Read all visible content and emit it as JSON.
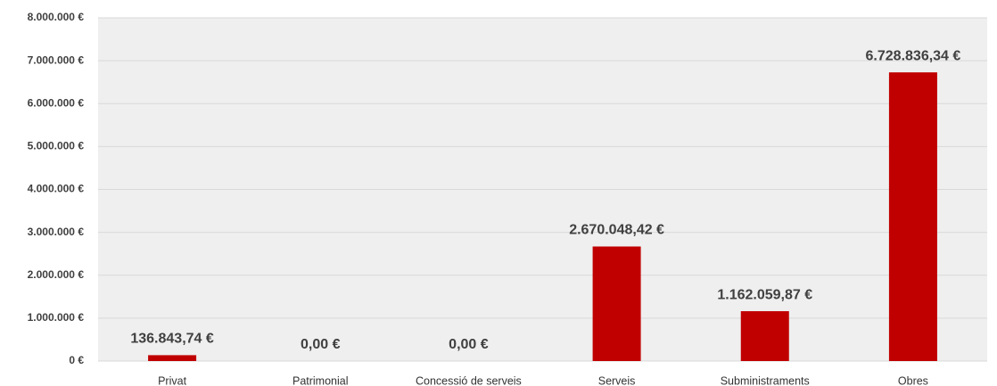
{
  "chart_data": {
    "type": "bar",
    "categories": [
      "Privat",
      "Patrimonial",
      "Concessió de serveis",
      "Serveis",
      "Subministraments",
      "Obres"
    ],
    "values": [
      136843.74,
      0,
      0,
      2670048.42,
      1162059.87,
      6728836.34
    ],
    "value_labels": [
      "136.843,74 €",
      "0,00 €",
      "0,00 €",
      "2.670.048,42 €",
      "1.162.059,87 €",
      "6.728.836,34 €"
    ],
    "color": "#c00000",
    "ylim": [
      0,
      8000000
    ],
    "yticks": [
      {
        "value": 0,
        "label": "0 €"
      },
      {
        "value": 1000000,
        "label": "1.000.000 €"
      },
      {
        "value": 2000000,
        "label": "2.000.000 €"
      },
      {
        "value": 3000000,
        "label": "3.000.000 €"
      },
      {
        "value": 4000000,
        "label": "4.000.000 €"
      },
      {
        "value": 5000000,
        "label": "5.000.000 €"
      },
      {
        "value": 6000000,
        "label": "6.000.000 €"
      },
      {
        "value": 7000000,
        "label": "7.000.000 €"
      },
      {
        "value": 8000000,
        "label": "8.000.000 €"
      }
    ],
    "grid": true
  }
}
